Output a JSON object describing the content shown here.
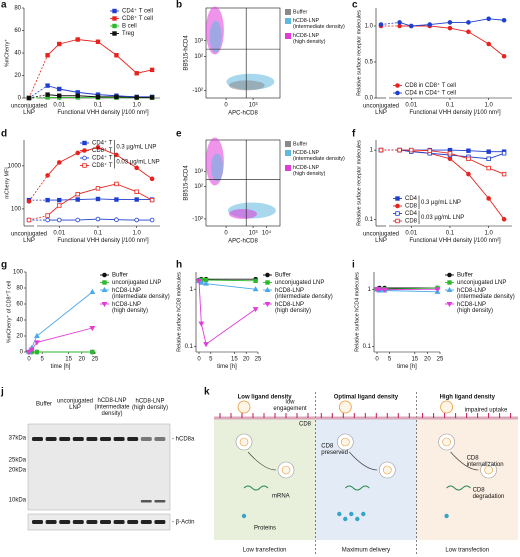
{
  "chart_data": [
    {
      "panel": "a",
      "type": "line",
      "ylabel": "%mCherry⁺",
      "xlabel": "Functional VHH density [/100 nm²]",
      "break_label": [
        "unconjugated",
        "LNP"
      ],
      "x": [
        0.005,
        0.01,
        0.03,
        0.1,
        0.3,
        1,
        2.5
      ],
      "xscale": "log",
      "xlim": [
        0.003,
        4
      ],
      "xticks": [
        0.01,
        0.1,
        {
          "value": 1,
          "label": "1.0"
        }
      ],
      "yscale": "linear",
      "ylim": [
        0,
        80
      ],
      "yticks": [
        0,
        20,
        40,
        60,
        80
      ],
      "legend": "upper right",
      "series": [
        {
          "name": "CD4⁺ T cell",
          "color": "#1f3fd0",
          "marker": "square",
          "fill": true,
          "unconjugated": 0,
          "values": [
            11,
            8,
            5,
            3,
            2,
            1,
            1
          ]
        },
        {
          "name": "CD8⁺ T cell",
          "color": "#e8231f",
          "marker": "square",
          "fill": true,
          "unconjugated": 0,
          "values": [
            38,
            48,
            52,
            50,
            38,
            22,
            25
          ]
        },
        {
          "name": "B cell",
          "color": "#2eb82e",
          "marker": "square",
          "fill": true,
          "unconjugated": 0,
          "values": [
            0.5,
            0.5,
            0.5,
            0.3,
            0.3,
            0.3,
            0.3
          ]
        },
        {
          "name": "Treg",
          "color": "#111111",
          "marker": "square",
          "fill": true,
          "unconjugated": 0,
          "values": [
            3,
            2,
            2,
            1,
            1,
            0.5,
            0.5
          ]
        }
      ]
    },
    {
      "panel": "b",
      "type": "flow",
      "xlabel": "APC-hCD8",
      "ylabel": "BB515-hCD4",
      "xlim": [
        -300,
        100000
      ],
      "ylim": [
        -300,
        100000
      ],
      "xticks": [
        0,
        {
          "value": 1000,
          "label": "10³"
        }
      ],
      "yticks": [
        {
          "value": -100,
          "label": "-10²"
        },
        {
          "value": 100,
          "label": "10²"
        },
        {
          "value": 1000,
          "label": "10³"
        }
      ],
      "gate": {
        "x": 300,
        "y": 300
      },
      "legend": "right",
      "series": [
        {
          "name": "Buffer",
          "color": "#8a8a8a"
        },
        {
          "name": "hCD8-LNP (intermediate density)",
          "color": "#5fb8e0"
        },
        {
          "name": "hCD8-LNP (high density)",
          "color": "#e03cd8"
        }
      ]
    },
    {
      "panel": "c",
      "type": "line",
      "ylabel": "Relative surface receptor molecules",
      "xlabel": "Functional VHH density [/100 nm²]",
      "break_label": [
        "unconjugated",
        "LNP"
      ],
      "x": [
        0.005,
        0.01,
        0.03,
        0.1,
        0.3,
        1,
        2.5
      ],
      "xscale": "log",
      "xlim": [
        0.003,
        4
      ],
      "xticks": [
        0.01,
        0.1,
        {
          "value": 1,
          "label": "1.0"
        }
      ],
      "yscale": "linear",
      "ylim": [
        0,
        1.25
      ],
      "yticks": [
        {
          "value": 0,
          "label": "0.0"
        },
        0.5,
        {
          "value": 1,
          "label": "1.0"
        }
      ],
      "legend": "lower left",
      "series": [
        {
          "name": "CD8 in CD8⁺ T cell",
          "color": "#e8231f",
          "marker": "circle",
          "fill": true,
          "unconjugated": 1.0,
          "values": [
            1.0,
            1.0,
            1.0,
            0.97,
            0.92,
            0.75,
            0.58
          ]
        },
        {
          "name": "CD4 in CD4⁺ T cell",
          "color": "#1f3fd0",
          "marker": "circle",
          "fill": true,
          "unconjugated": 1.02,
          "values": [
            1.05,
            1.0,
            1.02,
            1.05,
            1.05,
            1.1,
            1.08
          ]
        }
      ]
    },
    {
      "panel": "d",
      "type": "line",
      "ylabel": "mCherry MFI",
      "xlabel": "Functional VHH density [/100 nm²]",
      "break_label": [
        "unconjugated",
        "LNP"
      ],
      "x": [
        0.005,
        0.01,
        0.03,
        0.1,
        0.3,
        1,
        2.5
      ],
      "xscale": "log",
      "xlim": [
        0.003,
        4
      ],
      "xticks": [
        0.01,
        0.1,
        {
          "value": 1,
          "label": "1.0"
        }
      ],
      "yscale": "log",
      "ylim": [
        40,
        4000
      ],
      "yticks": [
        100,
        1000
      ],
      "legend": "upper right",
      "legend_groups": [
        "0.3 µg/mL LNP",
        "0.03 µg/mL LNP"
      ],
      "series": [
        {
          "name": "CD4⁺ T",
          "color": "#1f3fd0",
          "marker": "square",
          "fill": true,
          "unconjugated": 160,
          "values": [
            160,
            160,
            165,
            170,
            165,
            165,
            165
          ]
        },
        {
          "name": "CD8⁺ T",
          "color": "#e8231f",
          "marker": "circle",
          "fill": true,
          "unconjugated": 150,
          "values": [
            600,
            1200,
            2000,
            2700,
            1800,
            900,
            500
          ]
        },
        {
          "name": "CD4⁺ T",
          "color": "#1f3fd0",
          "marker": "circle",
          "fill": false,
          "unconjugated": 55,
          "values": [
            55,
            55,
            55,
            58,
            56,
            55,
            55
          ]
        },
        {
          "name": "CD8⁺ T",
          "color": "#e8231f",
          "marker": "square",
          "fill": false,
          "unconjugated": 55,
          "values": [
            70,
            120,
            220,
            300,
            380,
            250,
            160
          ]
        }
      ]
    },
    {
      "panel": "e",
      "type": "flow",
      "xlabel": "APC-hCD8",
      "ylabel": "BB515-hCD4",
      "xlim": [
        -300,
        100000
      ],
      "ylim": [
        -300,
        100000
      ],
      "xticks": [
        0,
        {
          "value": 1000,
          "label": "10³"
        },
        {
          "value": 10000,
          "label": "10⁴"
        }
      ],
      "yticks": [
        {
          "value": -100,
          "label": "-10²"
        },
        {
          "value": 100,
          "label": "10²"
        },
        {
          "value": 1000,
          "label": "10³"
        }
      ],
      "gate": {
        "x": 300,
        "y": 300
      },
      "legend": "right",
      "series": [
        {
          "name": "Buffer",
          "color": "#8a8a8a"
        },
        {
          "name": "hCD8-LNP (intermediate density)",
          "color": "#5fb8e0"
        },
        {
          "name": "hCD8-LNP (high density)",
          "color": "#e03cd8"
        }
      ]
    },
    {
      "panel": "f",
      "type": "line",
      "ylabel": "Relative surface receptor molecules",
      "xlabel": "Functional VHH density [/100 nm²]",
      "break_label": [
        "unconjugated",
        "LNP"
      ],
      "x": [
        0.005,
        0.01,
        0.03,
        0.1,
        0.3,
        1,
        2.5
      ],
      "xscale": "log",
      "xlim": [
        0.003,
        4
      ],
      "xticks": [
        0.01,
        0.1,
        {
          "value": 1,
          "label": "1.0"
        }
      ],
      "yscale": "log",
      "ylim": [
        0.08,
        1.4
      ],
      "yticks": [
        0.1,
        1
      ],
      "legend": "lower left",
      "legend_groups": [
        "0.3 µg/mL LNP",
        "0.03 µg/mL LNP"
      ],
      "series": [
        {
          "name": "CD4",
          "color": "#1f3fd0",
          "marker": "square",
          "fill": true,
          "unconjugated": 1,
          "values": [
            1,
            1,
            1,
            1,
            0.98,
            0.95,
            0.95
          ]
        },
        {
          "name": "CD8",
          "color": "#e8231f",
          "marker": "circle",
          "fill": true,
          "unconjugated": 1,
          "values": [
            1,
            0.97,
            0.9,
            0.75,
            0.45,
            0.2,
            0.1
          ]
        },
        {
          "name": "CD4",
          "color": "#1f3fd0",
          "marker": "square",
          "fill": false,
          "unconjugated": 1,
          "values": [
            1,
            0.95,
            0.9,
            0.85,
            0.8,
            0.75,
            0.9
          ]
        },
        {
          "name": "CD8",
          "color": "#e8231f",
          "marker": "square",
          "fill": false,
          "unconjugated": 1,
          "values": [
            1,
            1,
            0.98,
            0.9,
            0.75,
            0.55,
            0.45
          ]
        }
      ]
    },
    {
      "panel": "g",
      "type": "line",
      "ylabel": "%mCherry⁺ of CD8⁺T cell",
      "xlabel": "time [h]",
      "x": [
        0,
        1,
        3,
        24
      ],
      "xscale": "linear",
      "xlim": [
        0,
        25
      ],
      "xticks": [
        0,
        5,
        15,
        20,
        25
      ],
      "yscale": "linear",
      "ylim": [
        0,
        100
      ],
      "yticks": [
        0,
        20,
        40,
        60,
        80,
        100
      ],
      "legend": "right",
      "series": [
        {
          "name": "Buffer",
          "color": "#111111",
          "marker": "circle",
          "fill": true,
          "values": [
            0,
            0,
            0,
            0
          ]
        },
        {
          "name": "unconjugated LNP",
          "color": "#2eb82e",
          "marker": "square",
          "fill": true,
          "values": [
            0,
            0,
            0,
            0
          ]
        },
        {
          "name": "hCD8-LNP (intermediate density)",
          "color": "#4aa8e8",
          "marker": "triangle",
          "fill": true,
          "values": [
            0,
            5,
            20,
            75
          ]
        },
        {
          "name": "hCD8-LNP (high density)",
          "color": "#e03cd8",
          "marker": "down-triangle",
          "fill": true,
          "values": [
            0,
            3,
            12,
            30
          ]
        }
      ]
    },
    {
      "panel": "h",
      "type": "line",
      "ylabel": "Relative surface hCD8 molecules",
      "xlabel": "time [h]",
      "x": [
        0,
        1,
        3,
        24
      ],
      "xscale": "linear",
      "xlim": [
        0,
        25
      ],
      "xticks": [
        0,
        5,
        15,
        20,
        25
      ],
      "yscale": "log",
      "ylim": [
        0.08,
        2
      ],
      "yticks": [
        0.1,
        1
      ],
      "legend": "right",
      "series": [
        {
          "name": "Buffer",
          "color": "#111111",
          "marker": "circle",
          "fill": true,
          "values": [
            1.45,
            1.5,
            1.5,
            1.5
          ]
        },
        {
          "name": "unconjugated LNP",
          "color": "#2eb82e",
          "marker": "square",
          "fill": true,
          "values": [
            1.4,
            1.45,
            1.45,
            1.4
          ]
        },
        {
          "name": "hCD8-LNP (intermediate density)",
          "color": "#4aa8e8",
          "marker": "triangle",
          "fill": true,
          "values": [
            1.4,
            1.3,
            1.25,
            1.0
          ]
        },
        {
          "name": "hCD8-LNP (high density)",
          "color": "#e03cd8",
          "marker": "down-triangle",
          "fill": true,
          "values": [
            1.4,
            0.25,
            0.11,
            0.45
          ]
        }
      ]
    },
    {
      "panel": "i",
      "type": "line",
      "ylabel": "Relative surface hCD4 molecules",
      "xlabel": "time [h]",
      "x": [
        0,
        1,
        3,
        24
      ],
      "xscale": "linear",
      "xlim": [
        0,
        25
      ],
      "xticks": [
        0,
        5,
        15,
        20,
        25
      ],
      "yscale": "log",
      "ylim": [
        0.08,
        2
      ],
      "yticks": [
        0.1,
        1
      ],
      "legend": "right",
      "series": [
        {
          "name": "Buffer",
          "color": "#111111",
          "marker": "circle",
          "fill": true,
          "values": [
            1,
            1.05,
            1.05,
            1.05
          ]
        },
        {
          "name": "unconjugated LNP",
          "color": "#2eb82e",
          "marker": "square",
          "fill": true,
          "values": [
            1,
            1,
            1,
            1.05
          ]
        },
        {
          "name": "hCD8-LNP (intermediate density)",
          "color": "#4aa8e8",
          "marker": "triangle",
          "fill": true,
          "values": [
            1,
            0.95,
            0.95,
            0.9
          ]
        },
        {
          "name": "hCD8-LNP (high density)",
          "color": "#e03cd8",
          "marker": "down-triangle",
          "fill": true,
          "values": [
            1,
            1,
            0.98,
            1
          ]
        }
      ]
    }
  ],
  "blot": {
    "panel": "j",
    "lanes": [
      [
        "Buffer"
      ],
      [
        "unconjugated",
        "LNP"
      ],
      [
        "hCD8-LNP",
        "(intermediate",
        "density)"
      ],
      [
        "hCD8-LNP",
        "(high density)"
      ]
    ],
    "markers": [
      "37kDa",
      "25kDa",
      "20kDa",
      "10kDa"
    ],
    "bands": [
      "- hCD8a",
      "- β-Actin"
    ]
  },
  "diagram": {
    "panel": "k",
    "columns": [
      {
        "title": "Low ligand density",
        "footer": "Low transfection"
      },
      {
        "title": "Optimal ligand density",
        "footer": "Maximum delivery"
      },
      {
        "title": "High ligand density",
        "footer": "Low transfection"
      }
    ],
    "notes": [
      [
        "low",
        "engagement"
      ],
      [
        "CD8"
      ],
      [
        "mRNA"
      ],
      [
        "Proteins"
      ],
      [
        "CD8",
        "preserved"
      ],
      [
        "impaired uptake"
      ],
      [
        "CD8",
        "internalization"
      ],
      [
        "CD8",
        "degradation"
      ]
    ]
  }
}
